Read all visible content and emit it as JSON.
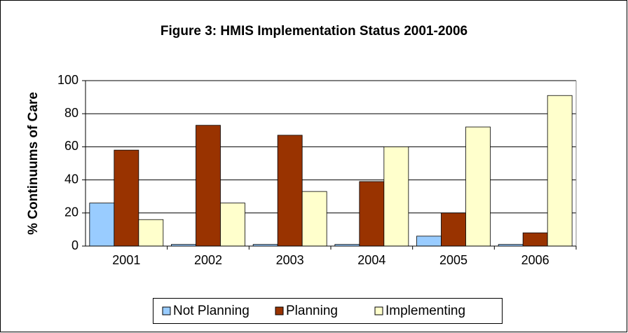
{
  "chart_data": {
    "type": "bar",
    "title": "Figure 3:  HMIS Implementation Status 2001-2006",
    "y_label": "% Continuums of Care",
    "categories": [
      "2001",
      "2002",
      "2003",
      "2004",
      "2005",
      "2006"
    ],
    "series": [
      {
        "name": "Not Planning",
        "color": "#99ccff",
        "values": [
          26,
          1,
          1,
          1,
          6,
          1
        ]
      },
      {
        "name": "Planning",
        "color": "#993300",
        "values": [
          58,
          73,
          67,
          39,
          20,
          8
        ]
      },
      {
        "name": "Implementing",
        "color": "#ffffcc",
        "values": [
          16,
          26,
          33,
          60,
          72,
          91
        ]
      }
    ],
    "ylim": [
      0,
      100
    ],
    "yticks": [
      0,
      20,
      40,
      60,
      80,
      100
    ],
    "grid": true,
    "legend": "bottom"
  }
}
